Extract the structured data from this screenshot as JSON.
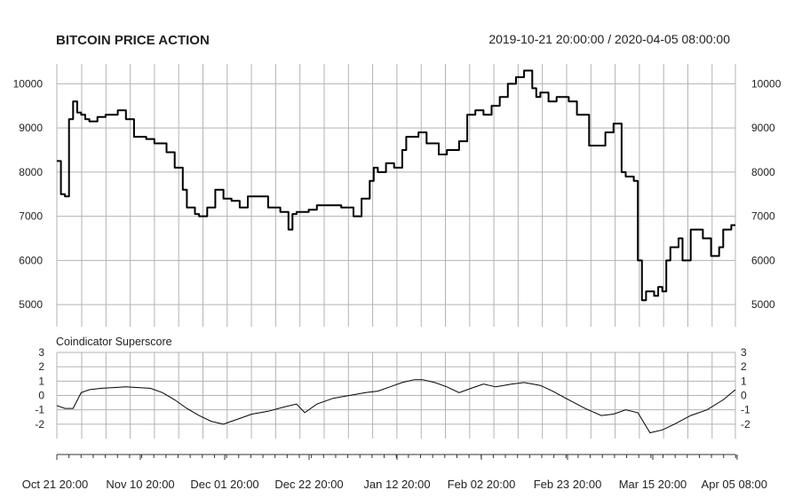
{
  "chart_data": [
    {
      "type": "line",
      "title": "BITCOIN PRICE ACTION",
      "date_range": "2019-10-21 20:00:00 / 2020-04-05 08:00:00",
      "y_ticks": [
        10000,
        9000,
        8000,
        7000,
        6000,
        5000
      ],
      "ylim": [
        4500,
        10450
      ],
      "grid": true,
      "x_tick_labels": [
        "Oct 21 20:00",
        "Nov 10 20:00",
        "Dec 01 20:00",
        "Dec 22 20:00",
        "Jan 12 20:00",
        "Feb 02 20:00",
        "Feb 23 20:00",
        "Mar 15 20:00",
        "Apr 05 08:00"
      ],
      "x_start": "2019-10-21",
      "x_end": "2020-04-05",
      "series": [
        {
          "x": [
            "2019-10-21",
            "2019-10-22",
            "2019-10-23",
            "2019-10-24",
            "2019-10-25",
            "2019-10-26",
            "2019-10-27",
            "2019-10-28",
            "2019-10-29",
            "2019-10-31",
            "2019-11-02",
            "2019-11-05",
            "2019-11-07",
            "2019-11-09",
            "2019-11-12",
            "2019-11-14",
            "2019-11-17",
            "2019-11-19",
            "2019-11-21",
            "2019-11-22",
            "2019-11-24",
            "2019-11-25",
            "2019-11-27",
            "2019-11-29",
            "2019-12-01",
            "2019-12-03",
            "2019-12-05",
            "2019-12-07",
            "2019-12-09",
            "2019-12-12",
            "2019-12-15",
            "2019-12-17",
            "2019-12-18",
            "2019-12-19",
            "2019-12-22",
            "2019-12-24",
            "2019-12-27",
            "2019-12-30",
            "2020-01-02",
            "2020-01-04",
            "2020-01-06",
            "2020-01-07",
            "2020-01-08",
            "2020-01-10",
            "2020-01-12",
            "2020-01-14",
            "2020-01-15",
            "2020-01-18",
            "2020-01-20",
            "2020-01-23",
            "2020-01-25",
            "2020-01-28",
            "2020-01-30",
            "2020-02-01",
            "2020-02-03",
            "2020-02-05",
            "2020-02-07",
            "2020-02-09",
            "2020-02-11",
            "2020-02-13",
            "2020-02-15",
            "2020-02-16",
            "2020-02-17",
            "2020-02-19",
            "2020-02-21",
            "2020-02-24",
            "2020-02-26",
            "2020-02-29",
            "2020-03-02",
            "2020-03-04",
            "2020-03-06",
            "2020-03-08",
            "2020-03-09",
            "2020-03-11",
            "2020-03-12",
            "2020-03-13",
            "2020-03-14",
            "2020-03-15",
            "2020-03-16",
            "2020-03-17",
            "2020-03-18",
            "2020-03-19",
            "2020-03-20",
            "2020-03-22",
            "2020-03-23",
            "2020-03-25",
            "2020-03-27",
            "2020-03-28",
            "2020-03-30",
            "2020-04-01",
            "2020-04-02",
            "2020-04-04",
            "2020-04-05"
          ],
          "y": [
            8250,
            7500,
            7450,
            9200,
            9600,
            9350,
            9300,
            9200,
            9150,
            9250,
            9300,
            9400,
            9200,
            8800,
            8750,
            8650,
            8450,
            8100,
            7600,
            7200,
            7050,
            7000,
            7200,
            7600,
            7400,
            7350,
            7200,
            7450,
            7450,
            7200,
            7100,
            6700,
            7050,
            7100,
            7150,
            7250,
            7250,
            7200,
            7000,
            7400,
            7800,
            8100,
            8000,
            8200,
            8100,
            8500,
            8800,
            8900,
            8650,
            8400,
            8500,
            8700,
            9300,
            9400,
            9300,
            9500,
            9700,
            10000,
            10150,
            10300,
            9900,
            9700,
            9800,
            9600,
            9700,
            9600,
            9300,
            8600,
            8600,
            8900,
            9100,
            8000,
            7900,
            7800,
            6000,
            5100,
            5300,
            5300,
            5200,
            5400,
            5300,
            6000,
            6300,
            6500,
            6000,
            6700,
            6700,
            6500,
            6100,
            6300,
            6700,
            6800,
            6800
          ]
        }
      ]
    },
    {
      "type": "line",
      "title": "Coindicator Superscore",
      "y_ticks": [
        3,
        2,
        1,
        0,
        -1,
        -2
      ],
      "ylim": [
        -3,
        3
      ],
      "grid": true,
      "series": [
        {
          "x": [
            "2019-10-21",
            "2019-10-23",
            "2019-10-25",
            "2019-10-27",
            "2019-10-29",
            "2019-11-01",
            "2019-11-04",
            "2019-11-07",
            "2019-11-10",
            "2019-11-13",
            "2019-11-16",
            "2019-11-19",
            "2019-11-22",
            "2019-11-25",
            "2019-11-28",
            "2019-12-01",
            "2019-12-04",
            "2019-12-08",
            "2019-12-12",
            "2019-12-16",
            "2019-12-19",
            "2019-12-21",
            "2019-12-24",
            "2019-12-28",
            "2020-01-01",
            "2020-01-05",
            "2020-01-08",
            "2020-01-11",
            "2020-01-14",
            "2020-01-17",
            "2020-01-19",
            "2020-01-22",
            "2020-01-25",
            "2020-01-28",
            "2020-01-31",
            "2020-02-03",
            "2020-02-06",
            "2020-02-10",
            "2020-02-13",
            "2020-02-17",
            "2020-02-20",
            "2020-02-24",
            "2020-02-28",
            "2020-03-03",
            "2020-03-06",
            "2020-03-09",
            "2020-03-12",
            "2020-03-15",
            "2020-03-18",
            "2020-03-21",
            "2020-03-25",
            "2020-03-29",
            "2020-04-02",
            "2020-04-05"
          ],
          "y": [
            -0.7,
            -0.9,
            -0.9,
            0.2,
            0.4,
            0.5,
            0.55,
            0.6,
            0.55,
            0.5,
            0.2,
            -0.3,
            -0.9,
            -1.4,
            -1.8,
            -2.0,
            -1.7,
            -1.3,
            -1.1,
            -0.8,
            -0.6,
            -1.2,
            -0.6,
            -0.2,
            0.0,
            0.2,
            0.3,
            0.6,
            0.9,
            1.1,
            1.1,
            0.9,
            0.6,
            0.2,
            0.5,
            0.8,
            0.6,
            0.8,
            0.9,
            0.7,
            0.3,
            -0.3,
            -0.9,
            -1.4,
            -1.3,
            -1.0,
            -1.2,
            -2.6,
            -2.4,
            -2.0,
            -1.4,
            -1.0,
            -0.3,
            0.4
          ]
        }
      ]
    }
  ]
}
